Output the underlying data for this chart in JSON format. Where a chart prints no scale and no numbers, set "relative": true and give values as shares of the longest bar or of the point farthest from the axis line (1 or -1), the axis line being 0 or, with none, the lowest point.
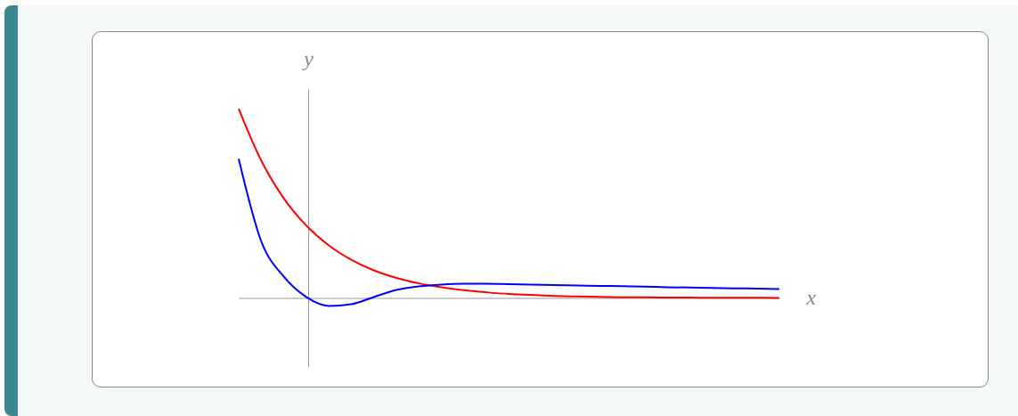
{
  "chart_data": {
    "type": "line",
    "relative": true,
    "xlabel": "x",
    "ylabel": "y",
    "grid": false,
    "marker": "none",
    "line_style": "solid",
    "tick_labels": false,
    "categories": [
      null,
      null,
      null,
      null,
      null,
      null,
      null,
      null,
      null,
      null,
      null,
      null,
      null,
      null,
      null,
      null,
      null,
      null,
      null,
      null,
      null,
      null,
      null,
      null,
      null
    ],
    "series": [
      {
        "color": "#ff0000",
        "values": [
          1,
          0.726,
          0.527,
          0.383,
          0.278,
          0.202,
          0.146,
          0.106,
          0.077,
          0.056,
          0.041,
          0.03,
          0.021,
          0.016,
          0.011,
          0.008,
          0.006,
          0.004,
          0.003,
          0.002,
          0.002,
          0.001,
          0.001,
          0.001,
          0
        ]
      },
      {
        "color": "#0000ff",
        "values": [
          0.736,
          0.3,
          0.113,
          0.005,
          -0.042,
          -0.033,
          0.005,
          0.042,
          0.061,
          0.071,
          0.075,
          0.075,
          0.073,
          0.071,
          0.068,
          0.066,
          0.064,
          0.062,
          0.06,
          0.057,
          0.055,
          0.053,
          0.051,
          0.049,
          0.047
        ]
      }
    ]
  }
}
